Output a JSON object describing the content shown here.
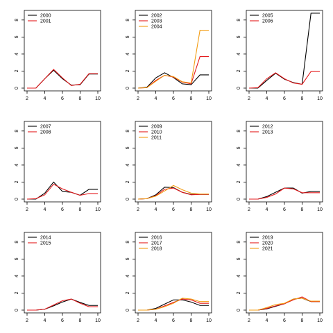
{
  "chart_data": [
    {
      "type": "line",
      "x": [
        2,
        3,
        4,
        5,
        6,
        7,
        8,
        9,
        10
      ],
      "xlim": [
        2,
        10
      ],
      "ylim": [
        0,
        8.8
      ],
      "xticks": [
        2,
        4,
        6,
        8,
        10
      ],
      "yticks": [
        0,
        2,
        4,
        6,
        8
      ],
      "legend": "top-left",
      "series": [
        {
          "name": "2000",
          "color": "#000000",
          "values": [
            0,
            0,
            1.1,
            2.1,
            1.1,
            0.35,
            0.4,
            1.65,
            1.65
          ]
        },
        {
          "name": "2001",
          "color": "#e41a1c",
          "values": [
            0,
            0,
            1.1,
            2.2,
            1.2,
            0.3,
            0.45,
            1.7,
            1.7
          ]
        }
      ]
    },
    {
      "type": "line",
      "x": [
        2,
        3,
        4,
        5,
        6,
        7,
        8,
        9,
        10
      ],
      "xlim": [
        2,
        10
      ],
      "ylim": [
        0,
        8.8
      ],
      "xticks": [
        2,
        4,
        6,
        8,
        10
      ],
      "yticks": [
        0,
        2,
        4,
        6,
        8
      ],
      "legend": "top-left",
      "series": [
        {
          "name": "2002",
          "color": "#000000",
          "values": [
            0,
            0.1,
            1.2,
            1.8,
            1.25,
            0.5,
            0.4,
            1.55,
            1.55
          ]
        },
        {
          "name": "2003",
          "color": "#e41a1c",
          "values": [
            0,
            0.05,
            0.9,
            1.5,
            1.3,
            0.7,
            0.5,
            3.7,
            3.7
          ]
        },
        {
          "name": "2004",
          "color": "#f39c12",
          "values": [
            0,
            0.05,
            0.8,
            1.5,
            1.35,
            0.75,
            0.6,
            6.8,
            6.8
          ]
        }
      ]
    },
    {
      "type": "line",
      "x": [
        2,
        3,
        4,
        5,
        6,
        7,
        8,
        9,
        10
      ],
      "xlim": [
        2,
        10
      ],
      "ylim": [
        0,
        8.8
      ],
      "xticks": [
        2,
        4,
        6,
        8,
        10
      ],
      "yticks": [
        0,
        2,
        4,
        6,
        8
      ],
      "legend": "top-left",
      "series": [
        {
          "name": "2005",
          "color": "#000000",
          "values": [
            0,
            0,
            0.9,
            1.75,
            1.05,
            0.65,
            0.45,
            8.8,
            8.8
          ]
        },
        {
          "name": "2006",
          "color": "#e41a1c",
          "values": [
            0,
            0.05,
            1.1,
            1.8,
            1.1,
            0.6,
            0.45,
            1.95,
            1.95
          ]
        }
      ]
    },
    {
      "type": "line",
      "x": [
        2,
        3,
        4,
        5,
        6,
        7,
        8,
        9,
        10
      ],
      "xlim": [
        2,
        10
      ],
      "ylim": [
        0,
        8.8
      ],
      "xticks": [
        2,
        4,
        6,
        8,
        10
      ],
      "yticks": [
        0,
        2,
        4,
        6,
        8
      ],
      "legend": "top-left",
      "series": [
        {
          "name": "2007",
          "color": "#000000",
          "values": [
            0,
            0,
            0.7,
            2.0,
            0.9,
            0.8,
            0.45,
            1.15,
            1.15
          ]
        },
        {
          "name": "2008",
          "color": "#e41a1c",
          "values": [
            0,
            0.05,
            0.5,
            1.75,
            1.2,
            0.8,
            0.45,
            0.65,
            0.65
          ]
        }
      ]
    },
    {
      "type": "line",
      "x": [
        2,
        3,
        4,
        5,
        6,
        7,
        8,
        9,
        10
      ],
      "xlim": [
        2,
        10
      ],
      "ylim": [
        0,
        8.8
      ],
      "xticks": [
        2,
        4,
        6,
        8,
        10
      ],
      "yticks": [
        0,
        2,
        4,
        6,
        8
      ],
      "legend": "top-left",
      "series": [
        {
          "name": "2009",
          "color": "#000000",
          "values": [
            0,
            0.05,
            0.5,
            1.4,
            1.35,
            0.8,
            0.55,
            0.55,
            0.55
          ]
        },
        {
          "name": "2010",
          "color": "#e41a1c",
          "values": [
            0,
            0.05,
            0.4,
            1.15,
            1.3,
            0.8,
            0.5,
            0.55,
            0.55
          ]
        },
        {
          "name": "2011",
          "color": "#f39c12",
          "values": [
            0,
            0.05,
            0.35,
            0.95,
            1.6,
            1.1,
            0.7,
            0.6,
            0.6
          ]
        }
      ]
    },
    {
      "type": "line",
      "x": [
        2,
        3,
        4,
        5,
        6,
        7,
        8,
        9,
        10
      ],
      "xlim": [
        2,
        10
      ],
      "ylim": [
        0,
        8.8
      ],
      "xticks": [
        2,
        4,
        6,
        8,
        10
      ],
      "yticks": [
        0,
        2,
        4,
        6,
        8
      ],
      "legend": "top-left",
      "series": [
        {
          "name": "2012",
          "color": "#000000",
          "values": [
            0,
            0,
            0.3,
            0.8,
            1.3,
            1.3,
            0.7,
            0.9,
            0.9
          ]
        },
        {
          "name": "2013",
          "color": "#e41a1c",
          "values": [
            0,
            0,
            0.2,
            0.6,
            1.3,
            1.2,
            0.75,
            0.75,
            0.75
          ]
        }
      ]
    },
    {
      "type": "line",
      "x": [
        2,
        3,
        4,
        5,
        6,
        7,
        8,
        9,
        10
      ],
      "xlim": [
        2,
        10
      ],
      "ylim": [
        0,
        8.8
      ],
      "xticks": [
        2,
        4,
        6,
        8,
        10
      ],
      "yticks": [
        0,
        2,
        4,
        6,
        8
      ],
      "legend": "top-left",
      "series": [
        {
          "name": "2014",
          "color": "#000000",
          "values": [
            0,
            0,
            0.1,
            0.5,
            0.95,
            1.3,
            0.9,
            0.55,
            0.55
          ]
        },
        {
          "name": "2015",
          "color": "#e41a1c",
          "values": [
            0,
            0,
            0.1,
            0.6,
            1.1,
            1.3,
            0.8,
            0.4,
            0.4
          ]
        }
      ]
    },
    {
      "type": "line",
      "x": [
        2,
        3,
        4,
        5,
        6,
        7,
        8,
        9,
        10
      ],
      "xlim": [
        2,
        10
      ],
      "ylim": [
        0,
        8.8
      ],
      "xticks": [
        2,
        4,
        6,
        8,
        10
      ],
      "yticks": [
        0,
        2,
        4,
        6,
        8
      ],
      "legend": "top-left",
      "series": [
        {
          "name": "2016",
          "color": "#000000",
          "values": [
            0,
            0,
            0.2,
            0.7,
            1.2,
            1.2,
            0.95,
            0.55,
            0.55
          ]
        },
        {
          "name": "2017",
          "color": "#e41a1c",
          "values": [
            0,
            0,
            0.1,
            0.5,
            0.9,
            1.3,
            1.2,
            0.8,
            0.8
          ]
        },
        {
          "name": "2018",
          "color": "#f39c12",
          "values": [
            0,
            0,
            0.1,
            0.4,
            0.8,
            1.4,
            1.3,
            1.0,
            1.0
          ]
        }
      ]
    },
    {
      "type": "line",
      "x": [
        2,
        3,
        4,
        5,
        6,
        7,
        8,
        9,
        10
      ],
      "xlim": [
        2,
        10
      ],
      "ylim": [
        0,
        8.8
      ],
      "xticks": [
        2,
        4,
        6,
        8,
        10
      ],
      "yticks": [
        0,
        2,
        4,
        6,
        8
      ],
      "legend": "top-left",
      "series": [
        {
          "name": "2019",
          "color": "#000000",
          "values": [
            0,
            0,
            0.15,
            0.45,
            0.75,
            1.3,
            1.4,
            1.0,
            1.0
          ]
        },
        {
          "name": "2020",
          "color": "#e41a1c",
          "values": [
            0,
            0,
            0.2,
            0.5,
            0.75,
            1.2,
            1.55,
            1.0,
            1.0
          ]
        },
        {
          "name": "2021",
          "color": "#f39c12",
          "values": [
            0,
            0,
            0.3,
            0.65,
            0.8,
            1.3,
            1.4,
            1.05,
            1.05
          ]
        }
      ]
    }
  ]
}
